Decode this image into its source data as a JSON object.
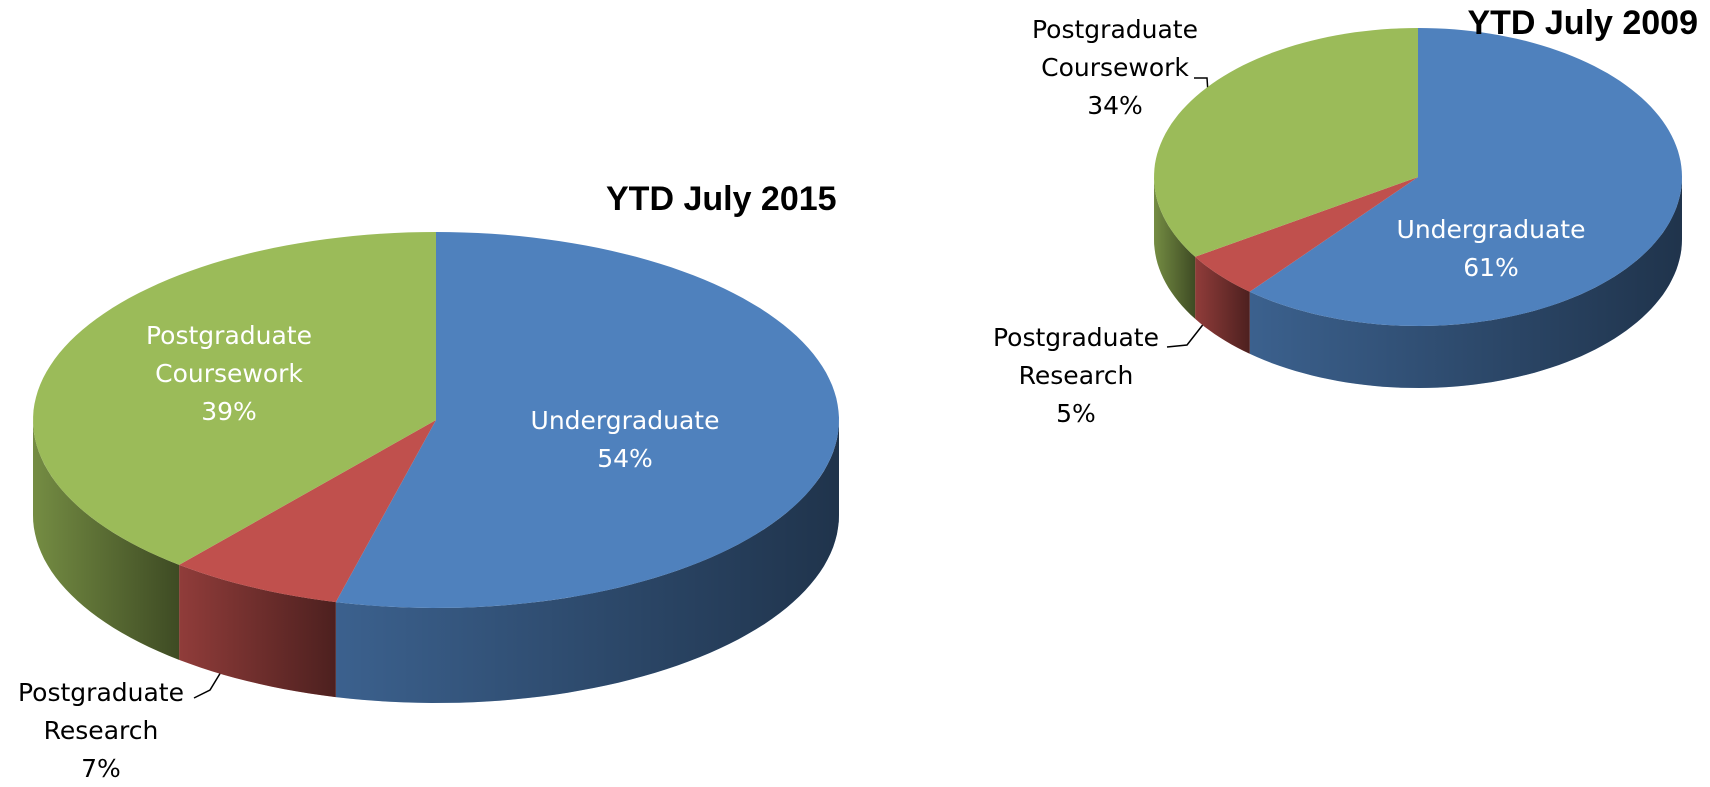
{
  "chart_data": [
    {
      "type": "pie",
      "title": "YTD July 2015",
      "categories": [
        "Undergraduate",
        "Postgraduate Research",
        "Postgraduate Coursework"
      ],
      "values": [
        54,
        7,
        39
      ],
      "value_labels": [
        "54%",
        "7%",
        "39%"
      ],
      "colors": [
        "#4f81bd",
        "#c0504d",
        "#9bbb59"
      ]
    },
    {
      "type": "pie",
      "title": "YTD July 2009",
      "categories": [
        "Undergraduate",
        "Postgraduate Research",
        "Postgraduate Coursework"
      ],
      "values": [
        61,
        5,
        34
      ],
      "value_labels": [
        "61%",
        "5%",
        "34%"
      ],
      "colors": [
        "#4f81bd",
        "#c0504d",
        "#9bbb59"
      ]
    }
  ]
}
